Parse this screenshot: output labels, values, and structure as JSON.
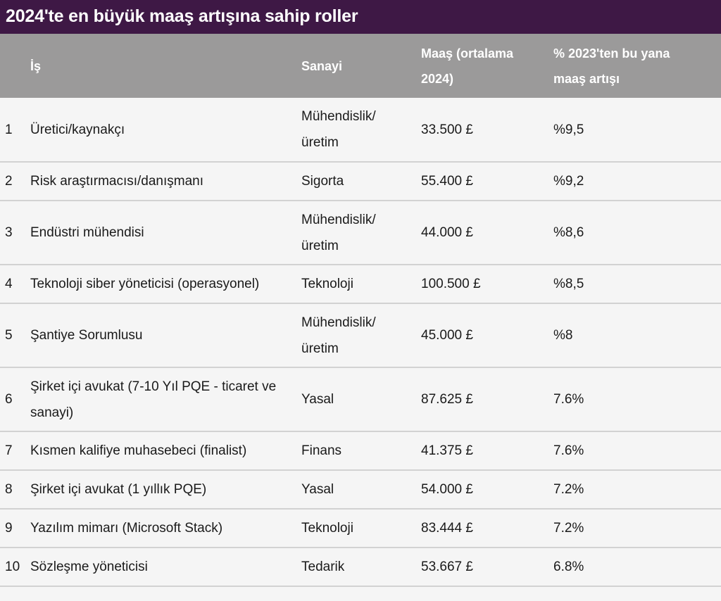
{
  "title": "2024'te en büyük maaş artışına sahip roller",
  "table": {
    "headers": [
      "",
      "İş",
      "Sanayi",
      "Maaş (ortalama 2024)",
      "% 2023'ten bu yana maaş artışı"
    ],
    "rows": [
      {
        "rank": "1",
        "job": "Üretici/kaynakçı",
        "industry": "Mühendislik/ üretim",
        "salary": "33.500 £",
        "increase": "%9,5"
      },
      {
        "rank": "2",
        "job": "Risk araştırmacısı/danışmanı",
        "industry": "Sigorta",
        "salary": "55.400 £",
        "increase": "%9,2"
      },
      {
        "rank": "3",
        "job": "Endüstri mühendisi",
        "industry": "Mühendislik/ üretim",
        "salary": "44.000 £",
        "increase": "%8,6"
      },
      {
        "rank": "4",
        "job": "Teknoloji siber yöneticisi (operasyonel)",
        "industry": "Teknoloji",
        "salary": "100.500 £",
        "increase": "%8,5"
      },
      {
        "rank": "5",
        "job": "Şantiye Sorumlusu",
        "industry": "Mühendislik/ üretim",
        "salary": "45.000 £",
        "increase": "%8"
      },
      {
        "rank": "6",
        "job": "Şirket içi avukat (7-10 Yıl PQE - ticaret ve sanayi)",
        "industry": "Yasal",
        "salary": "87.625 £",
        "increase": "7.6%"
      },
      {
        "rank": "7",
        "job": "Kısmen kalifiye muhasebeci (finalist)",
        "industry": "Finans",
        "salary": "41.375 £",
        "increase": "7.6%"
      },
      {
        "rank": "8",
        "job": "Şirket içi avukat (1 yıllık PQE)",
        "industry": "Yasal",
        "salary": "54.000 £",
        "increase": "7.2%"
      },
      {
        "rank": "9",
        "job": "Yazılım mimarı (Microsoft Stack)",
        "industry": "Teknoloji",
        "salary": "83.444 £",
        "increase": "7.2%"
      },
      {
        "rank": "10",
        "job": "Sözleşme yöneticisi",
        "industry": "Tedarik",
        "salary": "53.667 £",
        "increase": "6.8%"
      }
    ]
  },
  "colors": {
    "title_bg": "#3e1845",
    "header_bg": "#9b9a9a",
    "row_bg": "#f5f5f5",
    "row_border": "#d2d2d2"
  }
}
